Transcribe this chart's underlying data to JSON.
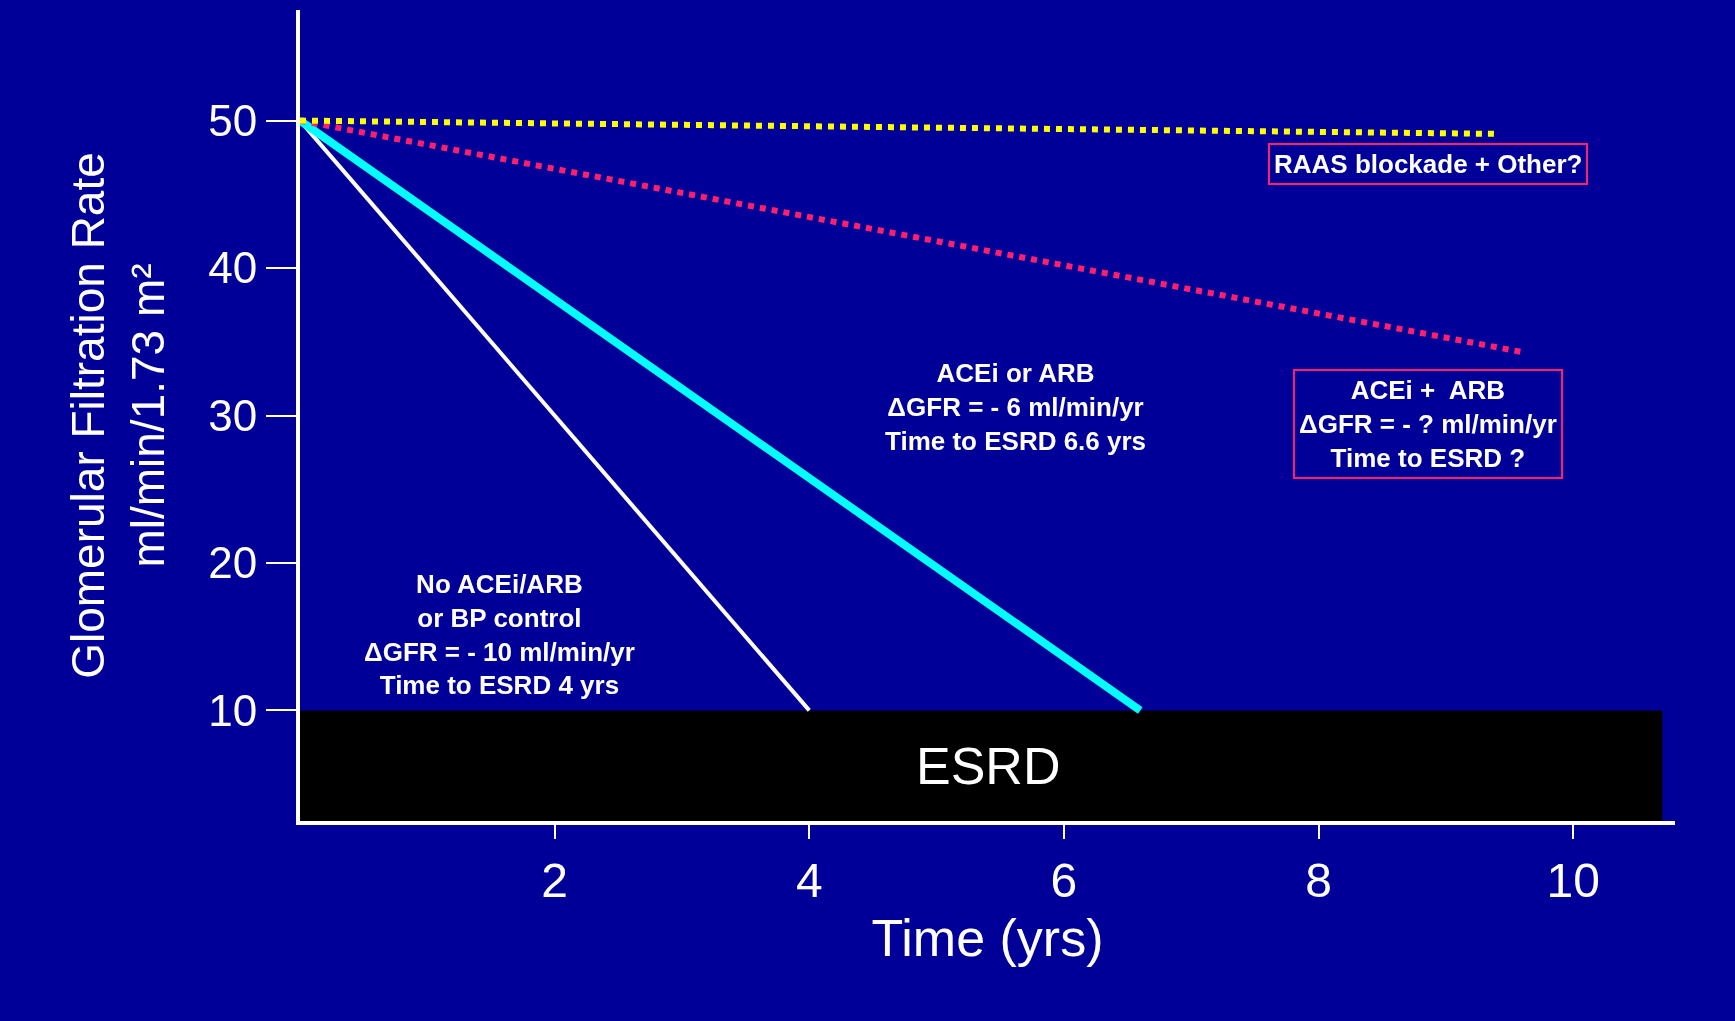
{
  "chart_data": {
    "type": "line",
    "xlabel": "Time (yrs)",
    "ylabel": "Glomerular Filtration Rate\nml/min/1.73 m²",
    "xlim": [
      0,
      10.8
    ],
    "xticks": [
      2,
      4,
      6,
      8,
      10
    ],
    "ylim": [
      2.5,
      57.5
    ],
    "yticks": [
      10,
      20,
      30,
      40,
      50
    ],
    "series": [
      {
        "color": "#ffffff",
        "x": [
          0,
          4
        ],
        "values": [
          50,
          10
        ],
        "line_style": "solid"
      },
      {
        "color": "#00ffff",
        "x": [
          0,
          6.6
        ],
        "values": [
          50,
          10
        ],
        "line_style": "solid"
      },
      {
        "color": "#ff1f6b",
        "x": [
          0,
          9.6
        ],
        "values": [
          50,
          34.3
        ],
        "line_style": "dotted"
      },
      {
        "color": "#ffff00",
        "x": [
          0,
          9.4
        ],
        "values": [
          50,
          49.1
        ],
        "line_style": "dotted"
      }
    ],
    "bands": [
      {
        "axis": "y",
        "from": 2.5,
        "to": 10,
        "label": "ESRD",
        "color": "#000000"
      }
    ],
    "annotations": [
      "No ACEi/ARB\nor BP control\nΔGFR = - 10 ml/min/yr\nTime to ESRD 4 yrs",
      "ACEi or ARB\nΔGFR = - 6 ml/min/yr\nTime to ESRD 6.6 yrs",
      "ACEi +  ARB\nΔGFR = - ? ml/min/yr\nTime to ESRD ?",
      "RAAS blockade + Other?"
    ],
    "grid": false
  }
}
